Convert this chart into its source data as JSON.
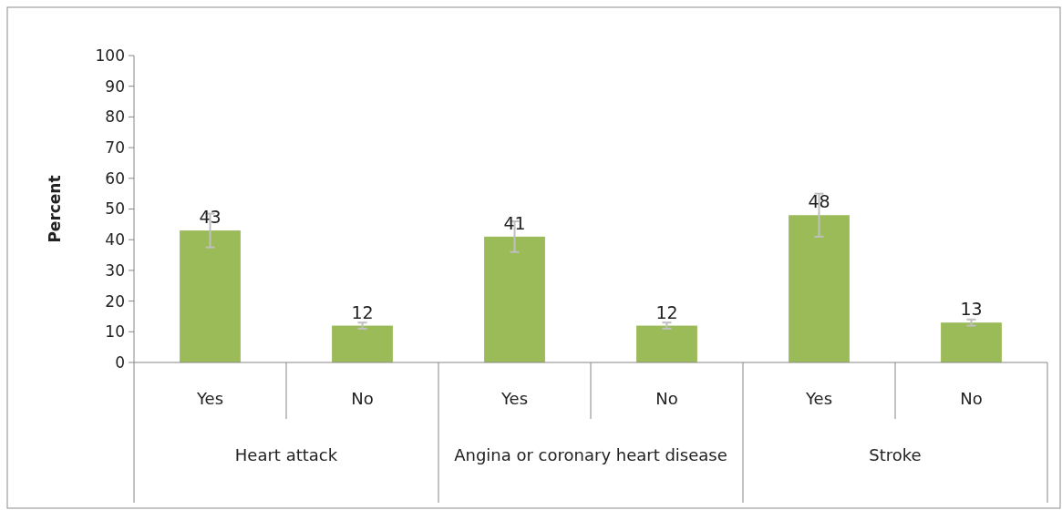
{
  "chart_data": {
    "type": "bar",
    "ylabel": "Percent",
    "categories": [
      "Yes",
      "No",
      "Yes",
      "No",
      "Yes",
      "No"
    ],
    "values": [
      43,
      12,
      41,
      12,
      48,
      13
    ],
    "errors": [
      5.5,
      1,
      5,
      1,
      7,
      1
    ],
    "color": "#9bbb59",
    "ylim": [
      0,
      100
    ],
    "yticks": [
      0,
      10,
      20,
      30,
      40,
      50,
      60,
      70,
      80,
      90,
      100
    ],
    "data_labels": true,
    "annotations": [
      "Heart attack",
      "Angina or coronary heart disease",
      "Stroke"
    ]
  }
}
